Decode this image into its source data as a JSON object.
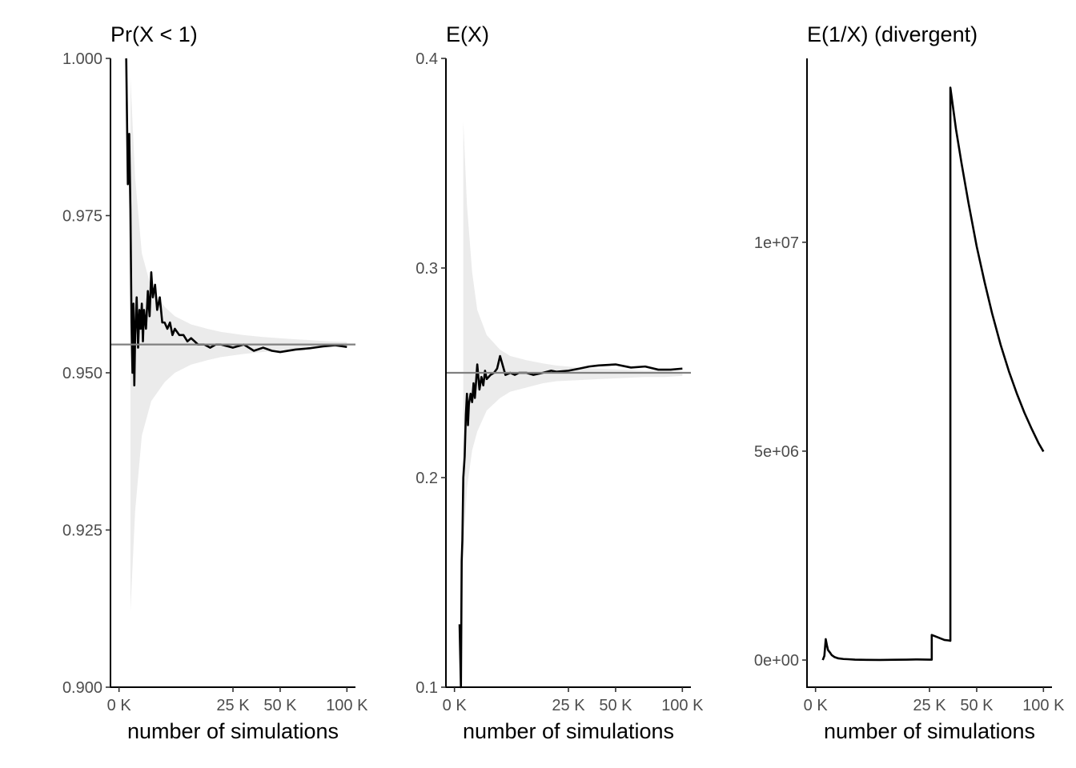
{
  "chart_data": [
    {
      "type": "line",
      "title": "Pr(X < 1)",
      "xlabel": "number of simulations",
      "ylabel": "",
      "x_scale": "sqrt",
      "xlim": [
        0,
        100000
      ],
      "ylim": [
        0.9,
        1.0
      ],
      "x_ticks": [
        0,
        25000,
        50000,
        100000
      ],
      "x_tick_labels": [
        "0 K",
        "25 K",
        "50 K",
        "100 K"
      ],
      "y_ticks": [
        0.9,
        0.925,
        0.95,
        0.975,
        1.0
      ],
      "y_tick_labels": [
        "0.900",
        "0.925",
        "0.950",
        "0.975",
        "1.000"
      ],
      "reference_line": 0.9545,
      "band_color": "#ebebeb",
      "line_color": "#000000",
      "reference_color": "#808080",
      "grid": false,
      "band": {
        "x": [
          250,
          500,
          1000,
          2000,
          4000,
          6000,
          10000,
          15000,
          20000,
          30000,
          40000,
          55000,
          70000,
          85000,
          100000
        ],
        "lower": [
          0.912,
          0.928,
          0.94,
          0.9455,
          0.9485,
          0.95,
          0.9513,
          0.952,
          0.9525,
          0.953,
          0.9533,
          0.9536,
          0.9538,
          0.954,
          0.9541
        ],
        "upper": [
          0.997,
          0.981,
          0.969,
          0.9635,
          0.9605,
          0.959,
          0.9577,
          0.957,
          0.9565,
          0.956,
          0.9557,
          0.9554,
          0.9552,
          0.955,
          0.9549
        ]
      },
      "series": [
        {
          "x": [
            100,
            150,
            200,
            250,
            300,
            350,
            400,
            450,
            500,
            600,
            700,
            800,
            900,
            1000,
            1100,
            1200,
            1400,
            1600,
            1800,
            2000,
            2200,
            2500,
            2800,
            3200,
            3600,
            4000,
            4500,
            5000,
            5500,
            6000,
            7000,
            8000,
            9000,
            10000,
            11000,
            12000,
            14000,
            16000,
            18000,
            20000,
            25000,
            30000,
            35000,
            40000,
            45000,
            50000,
            60000,
            70000,
            80000,
            90000,
            100000
          ],
          "y": [
            1.0,
            0.98,
            0.988,
            0.976,
            0.958,
            0.95,
            0.961,
            0.948,
            0.956,
            0.962,
            0.954,
            0.96,
            0.957,
            0.961,
            0.955,
            0.96,
            0.957,
            0.963,
            0.959,
            0.966,
            0.962,
            0.964,
            0.96,
            0.962,
            0.958,
            0.958,
            0.957,
            0.958,
            0.956,
            0.957,
            0.956,
            0.956,
            0.955,
            0.9555,
            0.955,
            0.9545,
            0.9545,
            0.954,
            0.9545,
            0.9545,
            0.954,
            0.9545,
            0.9535,
            0.954,
            0.9535,
            0.9533,
            0.9537,
            0.9539,
            0.9542,
            0.9544,
            0.9541
          ]
        }
      ]
    },
    {
      "type": "line",
      "title": "E(X)",
      "xlabel": "number of simulations",
      "ylabel": "",
      "x_scale": "sqrt",
      "xlim": [
        0,
        100000
      ],
      "ylim": [
        0.1,
        0.4
      ],
      "x_ticks": [
        0,
        25000,
        50000,
        100000
      ],
      "x_tick_labels": [
        "0 K",
        "25 K",
        "50 K",
        "100 K"
      ],
      "y_ticks": [
        0.1,
        0.2,
        0.3,
        0.4
      ],
      "y_tick_labels": [
        "0.1",
        "0.2",
        "0.3",
        "0.4"
      ],
      "reference_line": 0.25,
      "band_color": "#ebebeb",
      "line_color": "#000000",
      "reference_color": "#808080",
      "grid": false,
      "band": {
        "x": [
          150,
          300,
          600,
          1000,
          2000,
          4000,
          6000,
          10000,
          15000,
          20000,
          30000,
          40000,
          55000,
          70000,
          85000,
          100000
        ],
        "lower": [
          0.165,
          0.195,
          0.213,
          0.222,
          0.232,
          0.238,
          0.241,
          0.243,
          0.245,
          0.246,
          0.2465,
          0.247,
          0.2475,
          0.248,
          0.248,
          0.2485
        ],
        "upper": [
          0.37,
          0.33,
          0.298,
          0.28,
          0.268,
          0.261,
          0.258,
          0.256,
          0.2545,
          0.2535,
          0.2525,
          0.252,
          0.2515,
          0.251,
          0.251,
          0.2505
        ]
      },
      "series": [
        {
          "x": [
            50,
            80,
            100,
            120,
            150,
            200,
            250,
            300,
            350,
            400,
            500,
            600,
            700,
            800,
            900,
            1000,
            1200,
            1400,
            1600,
            1800,
            2000,
            2500,
            3000,
            3500,
            4000,
            5000,
            6000,
            7000,
            8000,
            10000,
            12000,
            15000,
            18000,
            20000,
            25000,
            30000,
            35000,
            40000,
            50000,
            60000,
            70000,
            80000,
            90000,
            100000
          ],
          "y": [
            0.13,
            0.1,
            0.16,
            0.17,
            0.2,
            0.21,
            0.23,
            0.24,
            0.225,
            0.235,
            0.24,
            0.236,
            0.245,
            0.238,
            0.246,
            0.254,
            0.242,
            0.248,
            0.244,
            0.251,
            0.247,
            0.249,
            0.25,
            0.252,
            0.258,
            0.249,
            0.25,
            0.249,
            0.25,
            0.25,
            0.249,
            0.25,
            0.251,
            0.2505,
            0.251,
            0.252,
            0.253,
            0.2535,
            0.254,
            0.2525,
            0.253,
            0.2515,
            0.2515,
            0.252
          ]
        }
      ]
    },
    {
      "type": "line",
      "title": "E(1/X) (divergent)",
      "xlabel": "number of simulations",
      "ylabel": "",
      "x_scale": "sqrt",
      "xlim": [
        0,
        100000
      ],
      "ylim": [
        -650000,
        14400000
      ],
      "x_ticks": [
        0,
        25000,
        50000,
        100000
      ],
      "x_tick_labels": [
        "0 K",
        "25 K",
        "50 K",
        "100 K"
      ],
      "y_ticks": [
        0,
        5000000,
        10000000
      ],
      "y_tick_labels": [
        "0e+00",
        "5e+06",
        "1e+07"
      ],
      "line_color": "#000000",
      "grid": false,
      "series": [
        {
          "x": [
            100,
            150,
            200,
            250,
            300,
            400,
            500,
            700,
            1000,
            1500,
            2000,
            3000,
            5000,
            8000,
            12000,
            16000,
            20000,
            25000,
            26000,
            26000,
            28000,
            30000,
            32000,
            34000,
            35000,
            35000,
            38000,
            41000,
            45000,
            50000,
            55000,
            60000,
            66000,
            72000,
            78000,
            84000,
            90000,
            96000,
            100000
          ],
          "y": [
            0,
            100000,
            500000,
            350000,
            240000,
            180000,
            120000,
            70000,
            40000,
            25000,
            20000,
            10000,
            5000,
            3000,
            8000,
            10000,
            15000,
            10000,
            10000,
            600000,
            560000,
            520000,
            480000,
            470000,
            460000,
            13700000,
            12700000,
            11900000,
            10950000,
            9900000,
            9050000,
            8300000,
            7540000,
            6910000,
            6380000,
            5920000,
            5530000,
            5180000,
            4990000
          ]
        }
      ]
    }
  ]
}
